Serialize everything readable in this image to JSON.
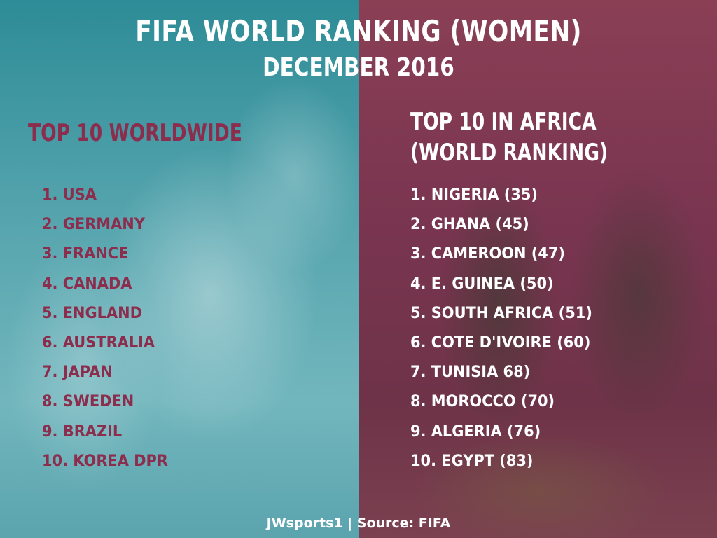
{
  "header": {
    "title": "FIFA WORLD RANKING (WOMEN)",
    "subtitle": "DECEMBER 2016"
  },
  "worldwide": {
    "heading": "TOP 10 WORLDWIDE",
    "items": [
      "1. USA",
      "2. GERMANY",
      "3. FRANCE",
      "4. CANADA",
      "5. ENGLAND",
      "6. AUSTRALIA",
      "7. JAPAN",
      "8. SWEDEN",
      "9. BRAZIL",
      "10. KOREA DPR"
    ]
  },
  "africa": {
    "heading_line1": "TOP 10 IN AFRICA",
    "heading_line2": "(WORLD RANKING)",
    "items": [
      "1. NIGERIA (35)",
      "2. GHANA (45)",
      "3. CAMEROON (47)",
      "4. E. GUINEA (50)",
      "5. SOUTH AFRICA (51)",
      "6. COTE D'IVOIRE (60)",
      "7. TUNISIA 68)",
      "8. MOROCCO (70)",
      "9. ALGERIA (76)",
      "10. EGYPT (83)"
    ]
  },
  "footer": {
    "credit": "JWsports1 | Source: FIFA"
  },
  "colors": {
    "left_panel": "#5aa7b0",
    "right_panel": "#7a3550",
    "accent_maroon": "#8c2d4d",
    "text_white": "#ffffff"
  }
}
